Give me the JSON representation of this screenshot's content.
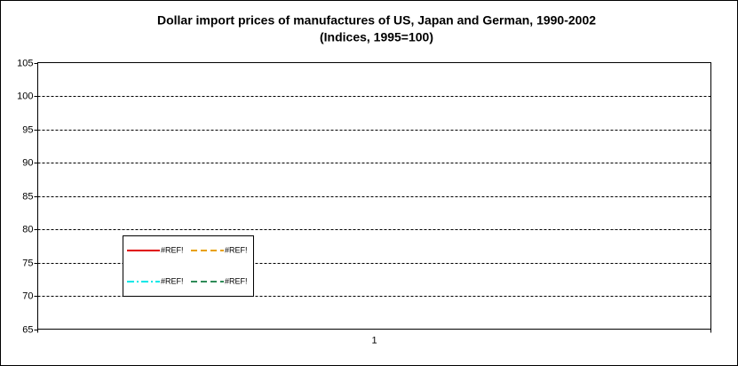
{
  "chart_data": {
    "type": "line",
    "title": "Dollar import prices of manufactures of US, Japan and German, 1990-2002",
    "subtitle": "(Indices, 1995=100)",
    "categories": [
      "1"
    ],
    "series": [
      {
        "name": "#REF!",
        "color": "#e00000",
        "dash": "solid",
        "values": [
          null
        ]
      },
      {
        "name": "#REF!",
        "color": "#e8a000",
        "dash": "dashed",
        "values": [
          null
        ]
      },
      {
        "name": "#REF!",
        "color": "#00e8e8",
        "dash": "dashdot",
        "values": [
          null
        ]
      },
      {
        "name": "#REF!",
        "color": "#2e8b57",
        "dash": "dashed",
        "values": [
          null
        ]
      }
    ],
    "ylim": [
      65,
      105
    ],
    "yticks": [
      65,
      70,
      75,
      80,
      85,
      90,
      95,
      100,
      105
    ],
    "grid": true
  }
}
